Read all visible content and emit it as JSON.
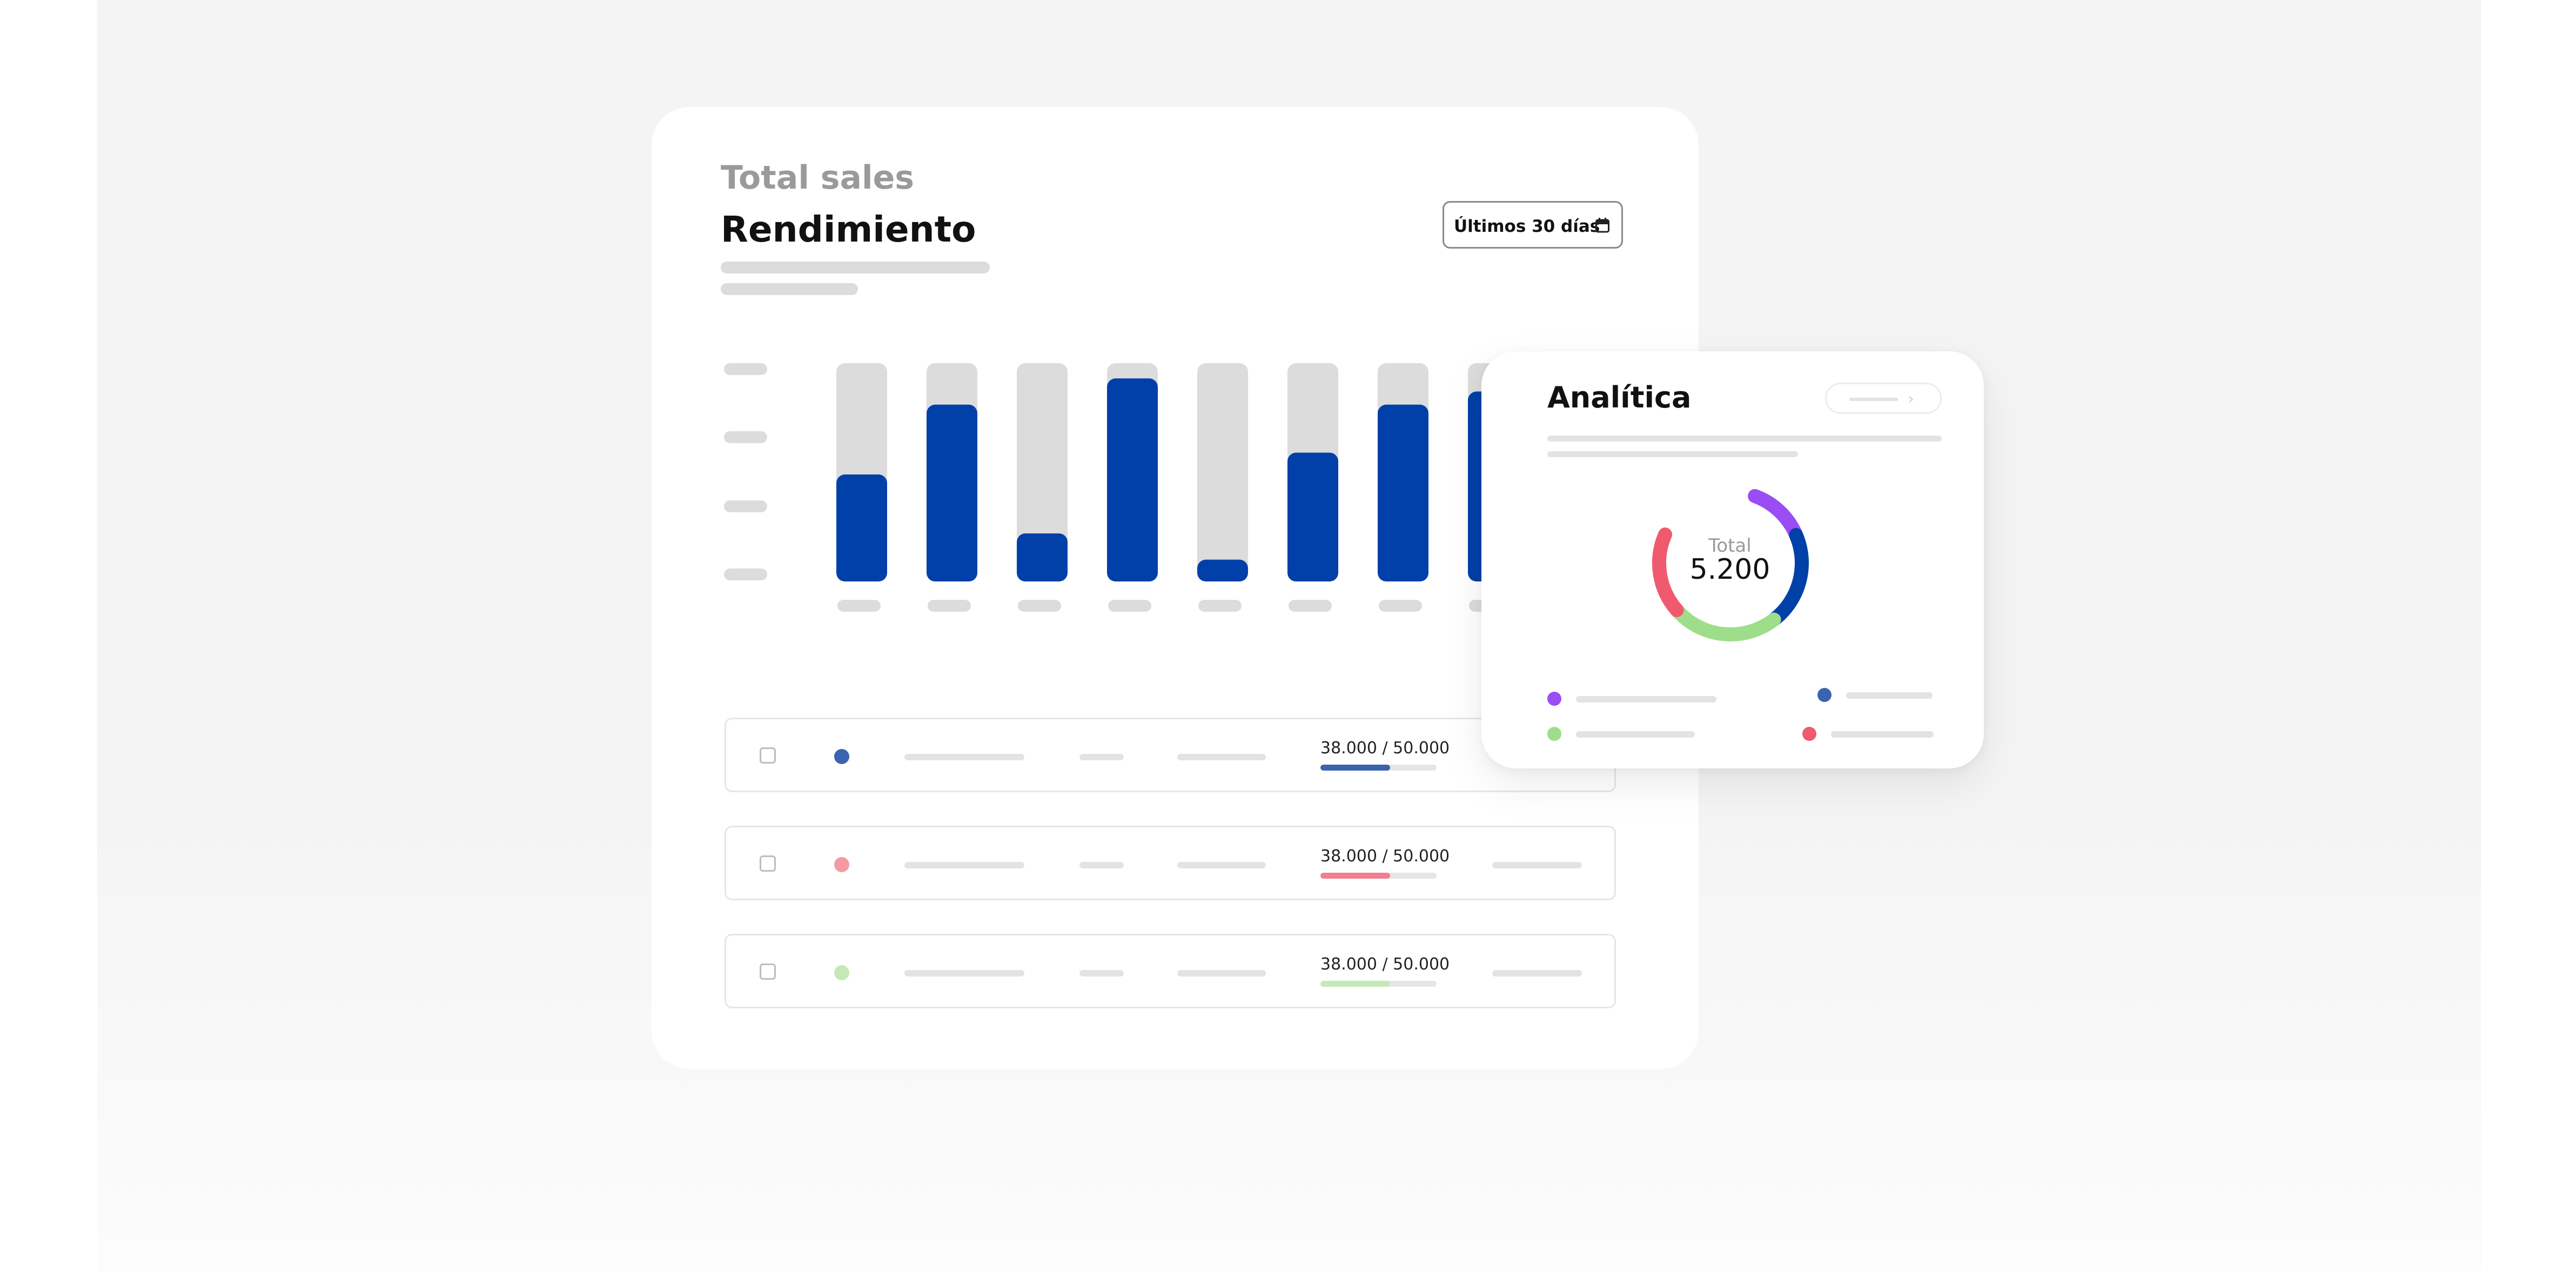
{
  "colors": {
    "primary_blue": "#0040a8",
    "track_gray": "#dcdcdc",
    "purple": "#9a4df5",
    "red": "#f05a6e",
    "green": "#9ede8a",
    "row_blue": "#3a63b0",
    "row_pink": "#f59aa5",
    "row_green": "#c4e9b7"
  },
  "main_card": {
    "subtitle": "Total sales",
    "title": "Rendimiento",
    "date_filter": {
      "label": "Últimos 30 días",
      "icon": "calendar-icon"
    }
  },
  "chart_data": {
    "type": "bar",
    "categories": [
      "",
      "",
      "",
      "",
      "",
      "",
      "",
      ""
    ],
    "series": [
      {
        "values": [
          49,
          81,
          22,
          93,
          10,
          59,
          81,
          87
        ]
      }
    ],
    "ylim": [
      0,
      100
    ],
    "grid": false,
    "note_placeholder_axes": true
  },
  "rows": [
    {
      "amount": "38.000 / 50.000",
      "progress": 0.6,
      "dot_color": "#3a63b0",
      "bar_color": "#3a63b0"
    },
    {
      "amount": "38.000 / 50.000",
      "progress": 0.6,
      "dot_color": "#f59aa5",
      "bar_color": "#f07f8f"
    },
    {
      "amount": "38.000 / 50.000",
      "progress": 0.6,
      "dot_color": "#c4e9b7",
      "bar_color": "#c4e9b7"
    }
  ],
  "analytics": {
    "title": "Analítica",
    "button_icon": "chevron-right-icon",
    "total_label": "Total",
    "total_value": "5.200",
    "donut_segments": [
      {
        "color": "#9a4df5",
        "share": 0.13
      },
      {
        "color": "#0040a8",
        "share": 0.21
      },
      {
        "color": "#9ede8a",
        "share": 0.24
      },
      {
        "color": "#f05a6e",
        "share": 0.18
      }
    ],
    "legend": [
      {
        "color": "#9a4df5"
      },
      {
        "color": "#3a63b0"
      },
      {
        "color": "#9ede8a"
      },
      {
        "color": "#f05a6e"
      }
    ]
  }
}
